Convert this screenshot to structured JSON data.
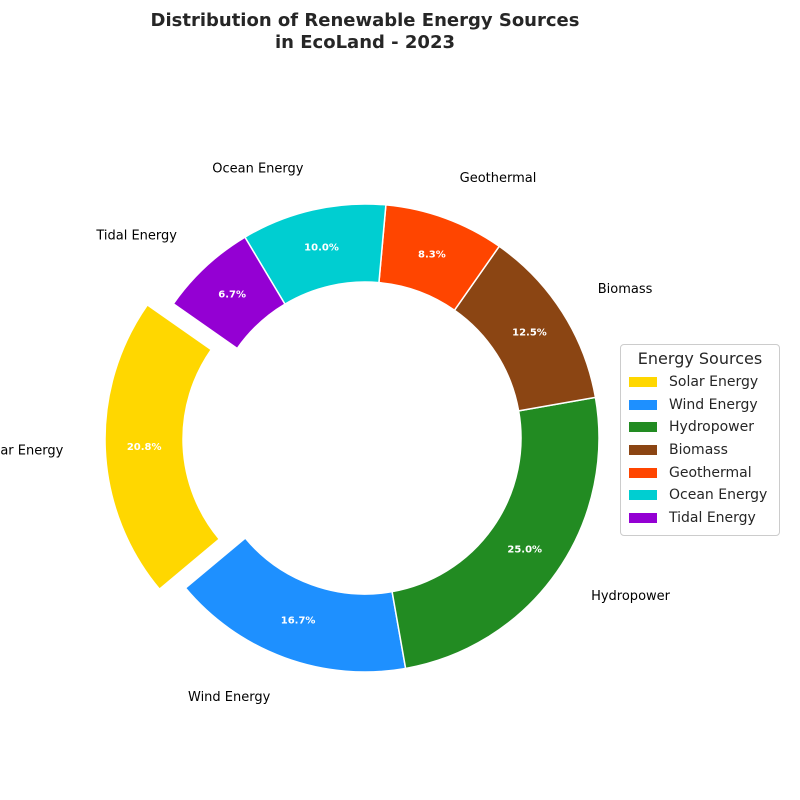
{
  "chart_data": {
    "type": "pie",
    "style": "donut",
    "title_lines": [
      "Distribution of Renewable Energy Sources",
      "in EcoLand - 2023"
    ],
    "start_angle_deg": 145,
    "direction": "counterclockwise",
    "exploded": [
      "Solar Energy"
    ],
    "legend_title": "Energy Sources",
    "legend_position": "center-right",
    "slices": [
      {
        "label": "Solar Energy",
        "value": 20.8,
        "pct_label": "20.8%",
        "color": "#FFD700"
      },
      {
        "label": "Wind Energy",
        "value": 16.7,
        "pct_label": "16.7%",
        "color": "#1E90FF"
      },
      {
        "label": "Hydropower",
        "value": 25.0,
        "pct_label": "25.0%",
        "color": "#228B22"
      },
      {
        "label": "Biomass",
        "value": 12.5,
        "pct_label": "12.5%",
        "color": "#8B4513"
      },
      {
        "label": "Geothermal",
        "value": 8.3,
        "pct_label": "8.3%",
        "color": "#FF4500"
      },
      {
        "label": "Ocean Energy",
        "value": 10.0,
        "pct_label": "10.0%",
        "color": "#00CED1"
      },
      {
        "label": "Tidal Energy",
        "value": 6.7,
        "pct_label": "6.7%",
        "color": "#9400D3"
      }
    ]
  }
}
